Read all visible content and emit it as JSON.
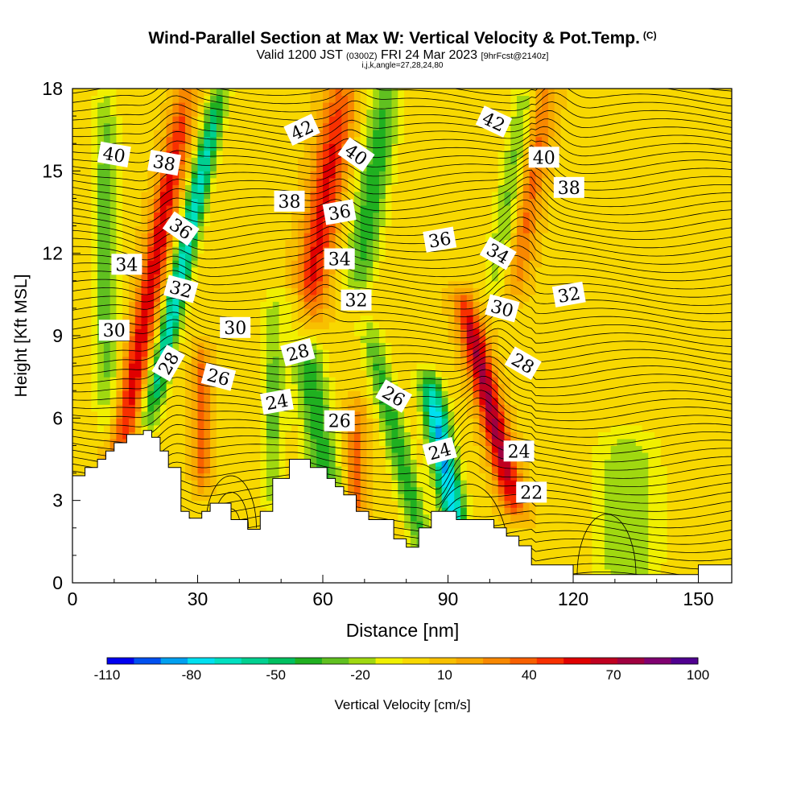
{
  "header": {
    "title": "Wind-Parallel Section at Max W: Vertical Velocity & Pot.Temp.",
    "copyright": "(C)",
    "valid_prefix": "Valid 1200 JST",
    "valid_utc": "(0300Z)",
    "valid_date": "FRI 24 Mar 2023",
    "forecast": "[9hrFcst@2140z]",
    "params": "i,j,k,angle=27,28,24,80"
  },
  "chart_data": {
    "type": "heatmap",
    "title": "Wind-Parallel Section at Max W: Vertical Velocity & Pot.Temp.",
    "xlabel": "Distance [nm]",
    "ylabel": "Height [Kft MSL]",
    "xlim": [
      0,
      158
    ],
    "ylim": [
      0,
      18
    ],
    "x_ticks": [
      0,
      30,
      60,
      90,
      120,
      150
    ],
    "y_ticks": [
      0,
      3,
      6,
      9,
      12,
      15,
      18
    ],
    "colorbar": {
      "label": "Vertical Velocity [cm/s]",
      "tick_labels": [
        -110,
        -80,
        -50,
        -20,
        10,
        40,
        70,
        100
      ],
      "colors": [
        "#0000f0",
        "#0050f0",
        "#00a0f0",
        "#00e0f0",
        "#00e0c0",
        "#00d090",
        "#00c060",
        "#20b020",
        "#60c020",
        "#a0d810",
        "#f0f000",
        "#f8d800",
        "#f8c000",
        "#f8a800",
        "#f88800",
        "#f86000",
        "#f83000",
        "#e00000",
        "#c00020",
        "#a00040",
        "#800070",
        "#500090"
      ]
    },
    "terrain": [
      [
        0,
        3.9
      ],
      [
        3,
        3.9
      ],
      [
        3,
        4.2
      ],
      [
        6,
        4.2
      ],
      [
        6,
        4.5
      ],
      [
        8,
        4.5
      ],
      [
        8,
        4.8
      ],
      [
        10,
        4.8
      ],
      [
        10,
        5.1
      ],
      [
        13,
        5.1
      ],
      [
        13,
        5.4
      ],
      [
        17,
        5.4
      ],
      [
        17,
        5.55
      ],
      [
        19,
        5.55
      ],
      [
        19,
        5.3
      ],
      [
        21,
        5.3
      ],
      [
        21,
        4.8
      ],
      [
        23,
        4.8
      ],
      [
        23,
        4.2
      ],
      [
        26,
        4.2
      ],
      [
        26,
        2.6
      ],
      [
        28,
        2.6
      ],
      [
        28,
        2.35
      ],
      [
        31,
        2.35
      ],
      [
        31,
        2.6
      ],
      [
        33,
        2.6
      ],
      [
        33,
        2.9
      ],
      [
        38,
        2.9
      ],
      [
        38,
        2.3
      ],
      [
        42,
        2.3
      ],
      [
        42,
        1.95
      ],
      [
        45,
        1.95
      ],
      [
        45,
        2.6
      ],
      [
        48,
        2.6
      ],
      [
        48,
        3.8
      ],
      [
        52,
        3.8
      ],
      [
        52,
        4.5
      ],
      [
        57,
        4.5
      ],
      [
        57,
        4.2
      ],
      [
        61,
        4.2
      ],
      [
        61,
        3.8
      ],
      [
        63,
        3.8
      ],
      [
        63,
        3.5
      ],
      [
        65,
        3.5
      ],
      [
        65,
        3.2
      ],
      [
        68,
        3.2
      ],
      [
        68,
        2.6
      ],
      [
        71,
        2.6
      ],
      [
        71,
        2.3
      ],
      [
        77,
        2.3
      ],
      [
        77,
        1.6
      ],
      [
        80,
        1.6
      ],
      [
        80,
        1.3
      ],
      [
        83,
        1.3
      ],
      [
        83,
        2.0
      ],
      [
        86,
        2.0
      ],
      [
        86,
        2.6
      ],
      [
        92,
        2.6
      ],
      [
        92,
        2.3
      ],
      [
        101,
        2.3
      ],
      [
        101,
        2.0
      ],
      [
        104,
        2.0
      ],
      [
        104,
        1.7
      ],
      [
        107,
        1.7
      ],
      [
        107,
        1.35
      ],
      [
        110,
        1.35
      ],
      [
        110,
        0.65
      ],
      [
        120,
        0.65
      ],
      [
        120,
        0.3
      ],
      [
        150,
        0.3
      ],
      [
        150,
        0.65
      ],
      [
        158,
        0.65
      ]
    ],
    "theta_labels": [
      {
        "text": "40",
        "x": 10,
        "y": 15.6,
        "rot": 10
      },
      {
        "text": "38",
        "x": 22,
        "y": 15.3,
        "rot": 10
      },
      {
        "text": "42",
        "x": 55,
        "y": 16.5,
        "rot": -25
      },
      {
        "text": "40",
        "x": 68,
        "y": 15.6,
        "rot": 35
      },
      {
        "text": "42",
        "x": 101,
        "y": 16.8,
        "rot": 25
      },
      {
        "text": "40",
        "x": 113,
        "y": 15.5,
        "rot": 0
      },
      {
        "text": "38",
        "x": 119,
        "y": 14.4,
        "rot": 0
      },
      {
        "text": "36",
        "x": 26,
        "y": 12.9,
        "rot": 35
      },
      {
        "text": "38",
        "x": 52,
        "y": 13.9,
        "rot": 0
      },
      {
        "text": "36",
        "x": 64,
        "y": 13.5,
        "rot": -10
      },
      {
        "text": "36",
        "x": 88,
        "y": 12.5,
        "rot": -10
      },
      {
        "text": "34",
        "x": 102,
        "y": 12.0,
        "rot": 30
      },
      {
        "text": "34",
        "x": 13,
        "y": 11.6,
        "rot": 0
      },
      {
        "text": "32",
        "x": 26,
        "y": 10.7,
        "rot": 15
      },
      {
        "text": "34",
        "x": 64,
        "y": 11.8,
        "rot": 0
      },
      {
        "text": "32",
        "x": 68,
        "y": 10.3,
        "rot": 0
      },
      {
        "text": "32",
        "x": 119,
        "y": 10.5,
        "rot": -10
      },
      {
        "text": "30",
        "x": 103,
        "y": 10.0,
        "rot": 15
      },
      {
        "text": "30",
        "x": 10,
        "y": 9.2,
        "rot": 0
      },
      {
        "text": "30",
        "x": 39,
        "y": 9.3,
        "rot": 0
      },
      {
        "text": "28",
        "x": 54,
        "y": 8.4,
        "rot": -15
      },
      {
        "text": "28",
        "x": 23,
        "y": 8.0,
        "rot": -60
      },
      {
        "text": "28",
        "x": 108,
        "y": 8.0,
        "rot": 30
      },
      {
        "text": "26",
        "x": 35,
        "y": 7.5,
        "rot": 15
      },
      {
        "text": "24",
        "x": 49,
        "y": 6.6,
        "rot": -10
      },
      {
        "text": "26",
        "x": 77,
        "y": 6.8,
        "rot": 30
      },
      {
        "text": "26",
        "x": 64,
        "y": 5.9,
        "rot": 0
      },
      {
        "text": "24",
        "x": 88,
        "y": 4.8,
        "rot": -15
      },
      {
        "text": "24",
        "x": 107,
        "y": 4.8,
        "rot": 0
      },
      {
        "text": "22",
        "x": 110,
        "y": 3.3,
        "rot": 0
      }
    ]
  }
}
